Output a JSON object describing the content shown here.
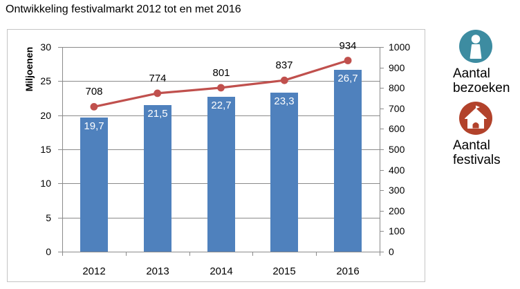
{
  "title": "Ontwikkeling festivalmarkt 2012 tot en met 2016",
  "chart_data": {
    "type": "bar+line",
    "title": "Ontwikkeling festivalmarkt 2012 tot en met 2016",
    "categories": [
      "2012",
      "2013",
      "2014",
      "2015",
      "2016"
    ],
    "series": [
      {
        "name": "Aantal bezoeken",
        "chart_type": "bar",
        "axis": "left",
        "unit": "miljoenen",
        "values": [
          19.7,
          21.5,
          22.7,
          23.3,
          26.7
        ],
        "data_labels": [
          "19,7",
          "21,5",
          "22,7",
          "23,3",
          "26,7"
        ],
        "color": "#4F81BD",
        "label_color": "#FFFFFF"
      },
      {
        "name": "Aantal festivals",
        "chart_type": "line",
        "axis": "right",
        "values": [
          708,
          774,
          801,
          837,
          934
        ],
        "data_labels": [
          "708",
          "774",
          "801",
          "837",
          "934"
        ],
        "color": "#C0504D"
      }
    ],
    "left_axis": {
      "title": "Miljoenen",
      "min": 0,
      "max": 30,
      "step": 5,
      "tick_labels": [
        "0",
        "5",
        "10",
        "15",
        "20",
        "25",
        "30"
      ]
    },
    "right_axis": {
      "min": 0,
      "max": 1000,
      "step": 100,
      "tick_labels": [
        "0",
        "100",
        "200",
        "300",
        "400",
        "500",
        "600",
        "700",
        "800",
        "900",
        "1000"
      ]
    },
    "gridlines": true,
    "legend_position": "right"
  },
  "legend": {
    "items": [
      {
        "icon": "person-icon",
        "line1": "Aantal",
        "line2": "bezoeken",
        "icon_color": "#3D8CA1"
      },
      {
        "icon": "house-icon",
        "line1": "Aantal",
        "line2": "festivals",
        "icon_color": "#B2422B"
      }
    ]
  },
  "colors": {
    "grid": "#8A8A8A",
    "frame": "#C4C4C4",
    "text": "#000000"
  }
}
